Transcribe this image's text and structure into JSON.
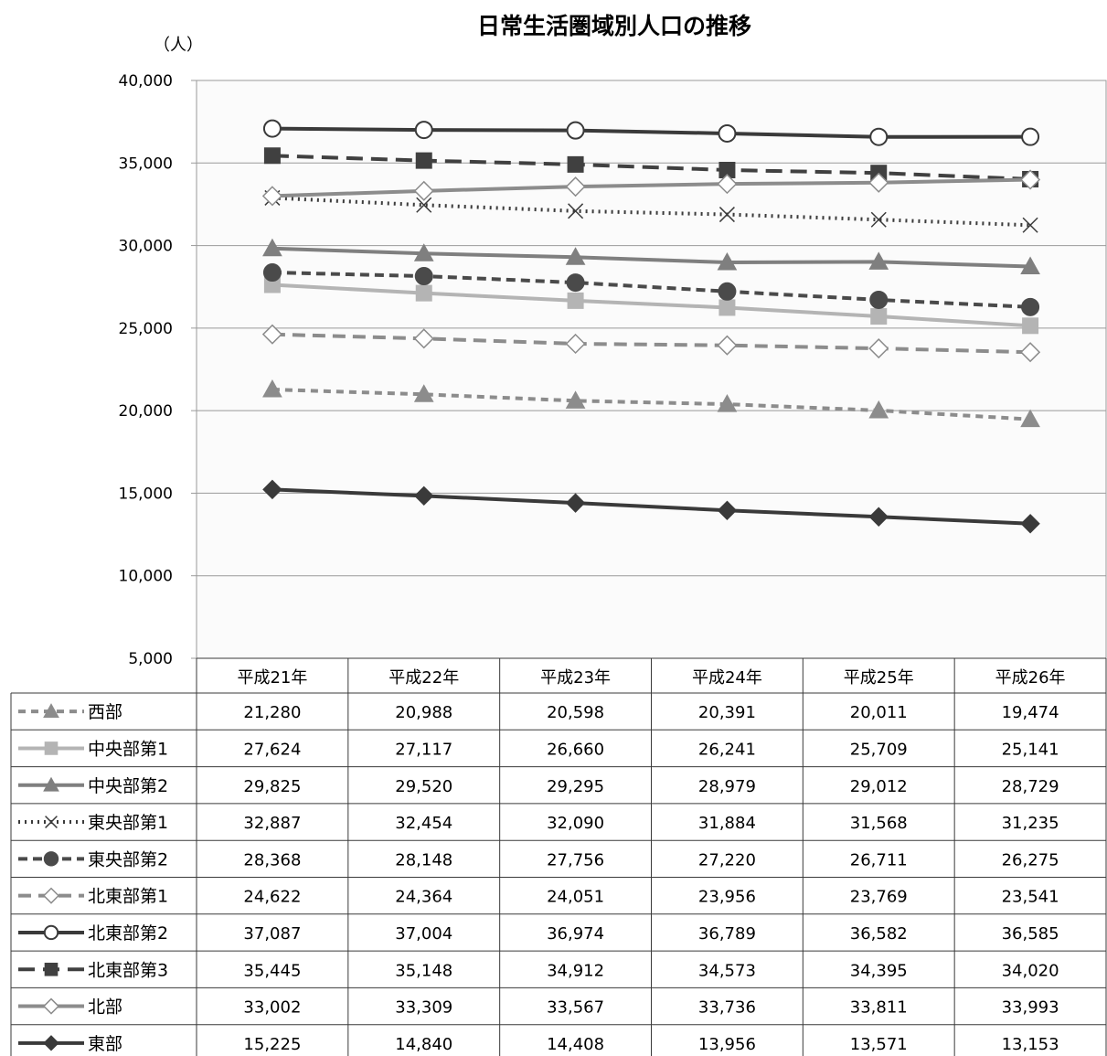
{
  "chart_data": {
    "type": "line",
    "title": "日常生活圏域別人口の推移",
    "y_unit": "（人）",
    "xlabel": "",
    "ylabel": "",
    "ylim": [
      5000,
      40000
    ],
    "yticks": [
      40000,
      35000,
      30000,
      25000,
      20000,
      15000,
      10000,
      5000
    ],
    "ytick_labels": [
      "40,000",
      "35,000",
      "30,000",
      "25,000",
      "20,000",
      "15,000",
      "10,000",
      "5,000"
    ],
    "categories": [
      "平成21年",
      "平成22年",
      "平成23年",
      "平成24年",
      "平成25年",
      "平成26年"
    ],
    "grid": true,
    "legend": "data-table",
    "series": [
      {
        "name": "西部",
        "values": [
          21280,
          20988,
          20598,
          20391,
          20011,
          19474
        ],
        "labels": [
          "21,280",
          "20,988",
          "20,598",
          "20,391",
          "20,011",
          "19,474"
        ],
        "color": "#8c8c8c",
        "marker": "triangle",
        "marker_fill": "#8c8c8c",
        "dash": "8 6"
      },
      {
        "name": "中央部第1",
        "values": [
          27624,
          27117,
          26660,
          26241,
          25709,
          25141
        ],
        "labels": [
          "27,624",
          "27,117",
          "26,660",
          "26,241",
          "25,709",
          "25,141"
        ],
        "color": "#b4b4b4",
        "marker": "square",
        "marker_fill": "#b4b4b4",
        "dash": ""
      },
      {
        "name": "中央部第2",
        "values": [
          29825,
          29520,
          29295,
          28979,
          29012,
          28729
        ],
        "labels": [
          "29,825",
          "29,520",
          "29,295",
          "28,979",
          "29,012",
          "28,729"
        ],
        "color": "#7f7f7f",
        "marker": "triangle",
        "marker_fill": "#7f7f7f",
        "dash": ""
      },
      {
        "name": "東央部第1",
        "values": [
          32887,
          32454,
          32090,
          31884,
          31568,
          31235
        ],
        "labels": [
          "32,887",
          "32,454",
          "32,090",
          "31,884",
          "31,568",
          "31,235"
        ],
        "color": "#3a3a3a",
        "marker": "x",
        "marker_fill": "none",
        "dash": "2 5"
      },
      {
        "name": "東央部第2",
        "values": [
          28368,
          28148,
          27756,
          27220,
          26711,
          26275
        ],
        "labels": [
          "28,368",
          "28,148",
          "27,756",
          "27,220",
          "26,711",
          "26,275"
        ],
        "color": "#4a4a4a",
        "marker": "circle",
        "marker_fill": "#4a4a4a",
        "dash": "10 6"
      },
      {
        "name": "北東部第1",
        "values": [
          24622,
          24364,
          24051,
          23956,
          23769,
          23541
        ],
        "labels": [
          "24,622",
          "24,364",
          "24,051",
          "23,956",
          "23,769",
          "23,541"
        ],
        "color": "#8c8c8c",
        "marker": "diamond-open",
        "marker_fill": "#ffffff",
        "dash": "14 8"
      },
      {
        "name": "北東部第2",
        "values": [
          37087,
          37004,
          36974,
          36789,
          36582,
          36585
        ],
        "labels": [
          "37,087",
          "37,004",
          "36,974",
          "36,789",
          "36,582",
          "36,585"
        ],
        "color": "#3a3a3a",
        "marker": "circle-open",
        "marker_fill": "#ffffff",
        "dash": ""
      },
      {
        "name": "北東部第3",
        "values": [
          35445,
          35148,
          34912,
          34573,
          34395,
          34020
        ],
        "labels": [
          "35,445",
          "35,148",
          "34,912",
          "34,573",
          "34,395",
          "34,020"
        ],
        "color": "#404040",
        "marker": "square",
        "marker_fill": "#404040",
        "dash": "18 9"
      },
      {
        "name": "北部",
        "values": [
          33002,
          33309,
          33567,
          33736,
          33811,
          33993
        ],
        "labels": [
          "33,002",
          "33,309",
          "33,567",
          "33,736",
          "33,811",
          "33,993"
        ],
        "color": "#8c8c8c",
        "marker": "diamond-open",
        "marker_fill": "#ffffff",
        "dash": ""
      },
      {
        "name": "東部",
        "values": [
          15225,
          14840,
          14408,
          13956,
          13571,
          13153
        ],
        "labels": [
          "15,225",
          "14,840",
          "14,408",
          "13,956",
          "13,571",
          "13,153"
        ],
        "color": "#3a3a3a",
        "marker": "diamond",
        "marker_fill": "#3a3a3a",
        "dash": ""
      }
    ]
  }
}
